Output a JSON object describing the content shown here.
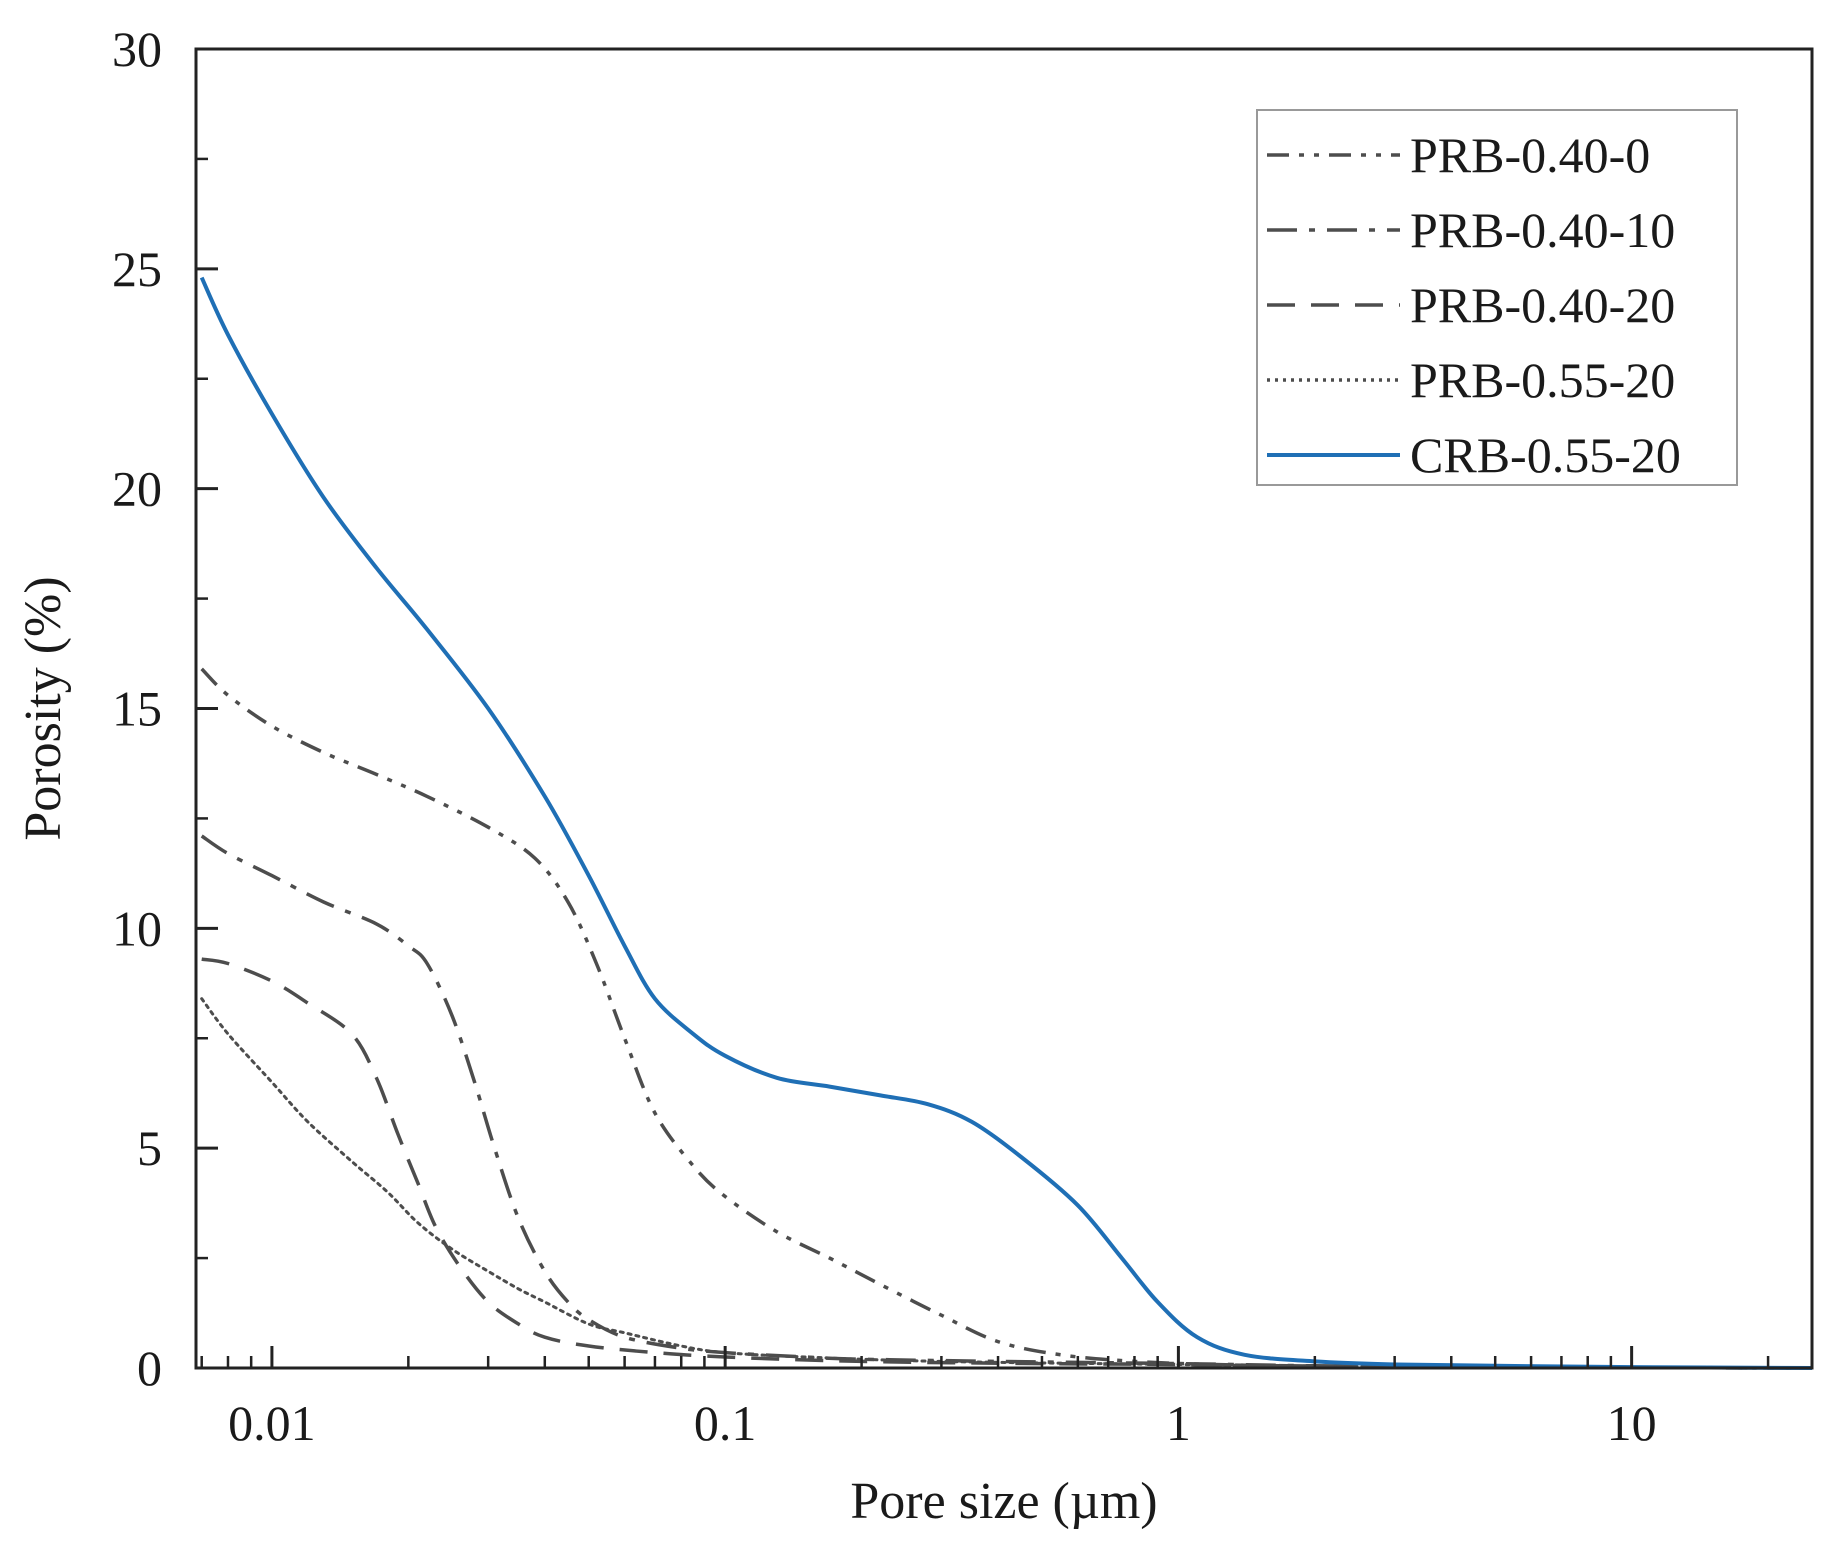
{
  "chart_data": {
    "type": "line",
    "title": "",
    "xlabel": "Pore size (µm)",
    "ylabel": "Porosity (%)",
    "xscale": "log",
    "xlim": [
      0.0068,
      25
    ],
    "ylim": [
      0,
      30
    ],
    "x_tick_labels": [
      {
        "value": 0.01,
        "label": "0.01"
      },
      {
        "value": 0.1,
        "label": "0.1"
      },
      {
        "value": 1,
        "label": "1"
      },
      {
        "value": 10,
        "label": "10"
      }
    ],
    "y_tick_labels": [
      {
        "value": 0,
        "label": "0"
      },
      {
        "value": 5,
        "label": "5"
      },
      {
        "value": 10,
        "label": "10"
      },
      {
        "value": 15,
        "label": "15"
      },
      {
        "value": 20,
        "label": "20"
      },
      {
        "value": 25,
        "label": "25"
      },
      {
        "value": 30,
        "label": "30"
      }
    ],
    "legend_position": "top-right",
    "series": [
      {
        "name": "PRB-0.40-0",
        "color": "#4d4d4d",
        "dash": "dash-dot-dot",
        "points": [
          [
            0.007,
            15.9
          ],
          [
            0.008,
            15.3
          ],
          [
            0.01,
            14.6
          ],
          [
            0.013,
            14.0
          ],
          [
            0.017,
            13.5
          ],
          [
            0.022,
            13.0
          ],
          [
            0.03,
            12.3
          ],
          [
            0.038,
            11.6
          ],
          [
            0.045,
            10.6
          ],
          [
            0.052,
            9.2
          ],
          [
            0.06,
            7.5
          ],
          [
            0.07,
            5.8
          ],
          [
            0.085,
            4.6
          ],
          [
            0.1,
            3.9
          ],
          [
            0.13,
            3.1
          ],
          [
            0.17,
            2.5
          ],
          [
            0.22,
            1.9
          ],
          [
            0.3,
            1.2
          ],
          [
            0.4,
            0.6
          ],
          [
            0.55,
            0.3
          ],
          [
            0.8,
            0.15
          ],
          [
            1.2,
            0.08
          ],
          [
            2,
            0.04
          ],
          [
            4,
            0.02
          ],
          [
            10,
            0.01
          ],
          [
            25,
            0
          ]
        ]
      },
      {
        "name": "PRB-0.40-10",
        "color": "#4d4d4d",
        "dash": "dash-dot",
        "points": [
          [
            0.007,
            12.1
          ],
          [
            0.008,
            11.7
          ],
          [
            0.01,
            11.2
          ],
          [
            0.013,
            10.6
          ],
          [
            0.017,
            10.1
          ],
          [
            0.02,
            9.6
          ],
          [
            0.022,
            9.2
          ],
          [
            0.025,
            8.0
          ],
          [
            0.028,
            6.5
          ],
          [
            0.031,
            5.0
          ],
          [
            0.035,
            3.4
          ],
          [
            0.04,
            2.2
          ],
          [
            0.045,
            1.5
          ],
          [
            0.05,
            1.1
          ],
          [
            0.06,
            0.7
          ],
          [
            0.08,
            0.45
          ],
          [
            0.1,
            0.35
          ],
          [
            0.15,
            0.25
          ],
          [
            0.2,
            0.2
          ],
          [
            0.4,
            0.15
          ],
          [
            1,
            0.1
          ],
          [
            2,
            0.05
          ],
          [
            5,
            0.02
          ],
          [
            25,
            0
          ]
        ]
      },
      {
        "name": "PRB-0.40-20",
        "color": "#4d4d4d",
        "dash": "dash",
        "points": [
          [
            0.007,
            9.3
          ],
          [
            0.008,
            9.2
          ],
          [
            0.01,
            8.8
          ],
          [
            0.012,
            8.3
          ],
          [
            0.015,
            7.6
          ],
          [
            0.017,
            6.6
          ],
          [
            0.019,
            5.3
          ],
          [
            0.021,
            4.2
          ],
          [
            0.023,
            3.2
          ],
          [
            0.026,
            2.3
          ],
          [
            0.03,
            1.5
          ],
          [
            0.035,
            1.0
          ],
          [
            0.04,
            0.7
          ],
          [
            0.05,
            0.5
          ],
          [
            0.07,
            0.35
          ],
          [
            0.1,
            0.25
          ],
          [
            0.2,
            0.15
          ],
          [
            0.5,
            0.1
          ],
          [
            1,
            0.08
          ],
          [
            3,
            0.03
          ],
          [
            25,
            0
          ]
        ]
      },
      {
        "name": "PRB-0.55-20",
        "color": "#4d4d4d",
        "dash": "dot",
        "points": [
          [
            0.007,
            8.4
          ],
          [
            0.008,
            7.6
          ],
          [
            0.01,
            6.5
          ],
          [
            0.012,
            5.6
          ],
          [
            0.015,
            4.7
          ],
          [
            0.018,
            4.0
          ],
          [
            0.021,
            3.3
          ],
          [
            0.025,
            2.7
          ],
          [
            0.03,
            2.2
          ],
          [
            0.035,
            1.8
          ],
          [
            0.04,
            1.5
          ],
          [
            0.05,
            1.0
          ],
          [
            0.06,
            0.8
          ],
          [
            0.08,
            0.5
          ],
          [
            0.1,
            0.35
          ],
          [
            0.15,
            0.25
          ],
          [
            0.3,
            0.15
          ],
          [
            1,
            0.08
          ],
          [
            3,
            0.03
          ],
          [
            25,
            0
          ]
        ]
      },
      {
        "name": "CRB-0.55-20",
        "color": "#1f6fb5",
        "dash": "solid",
        "points": [
          [
            0.007,
            24.8
          ],
          [
            0.008,
            23.5
          ],
          [
            0.01,
            21.7
          ],
          [
            0.013,
            19.8
          ],
          [
            0.017,
            18.2
          ],
          [
            0.022,
            16.8
          ],
          [
            0.03,
            15.0
          ],
          [
            0.04,
            13.0
          ],
          [
            0.05,
            11.2
          ],
          [
            0.06,
            9.6
          ],
          [
            0.07,
            8.4
          ],
          [
            0.085,
            7.6
          ],
          [
            0.1,
            7.1
          ],
          [
            0.13,
            6.6
          ],
          [
            0.17,
            6.4
          ],
          [
            0.22,
            6.2
          ],
          [
            0.28,
            6.0
          ],
          [
            0.35,
            5.6
          ],
          [
            0.45,
            4.8
          ],
          [
            0.6,
            3.7
          ],
          [
            0.75,
            2.5
          ],
          [
            0.9,
            1.5
          ],
          [
            1.1,
            0.7
          ],
          [
            1.4,
            0.3
          ],
          [
            2,
            0.15
          ],
          [
            3,
            0.08
          ],
          [
            5,
            0.05
          ],
          [
            10,
            0.02
          ],
          [
            25,
            0
          ]
        ]
      }
    ]
  }
}
